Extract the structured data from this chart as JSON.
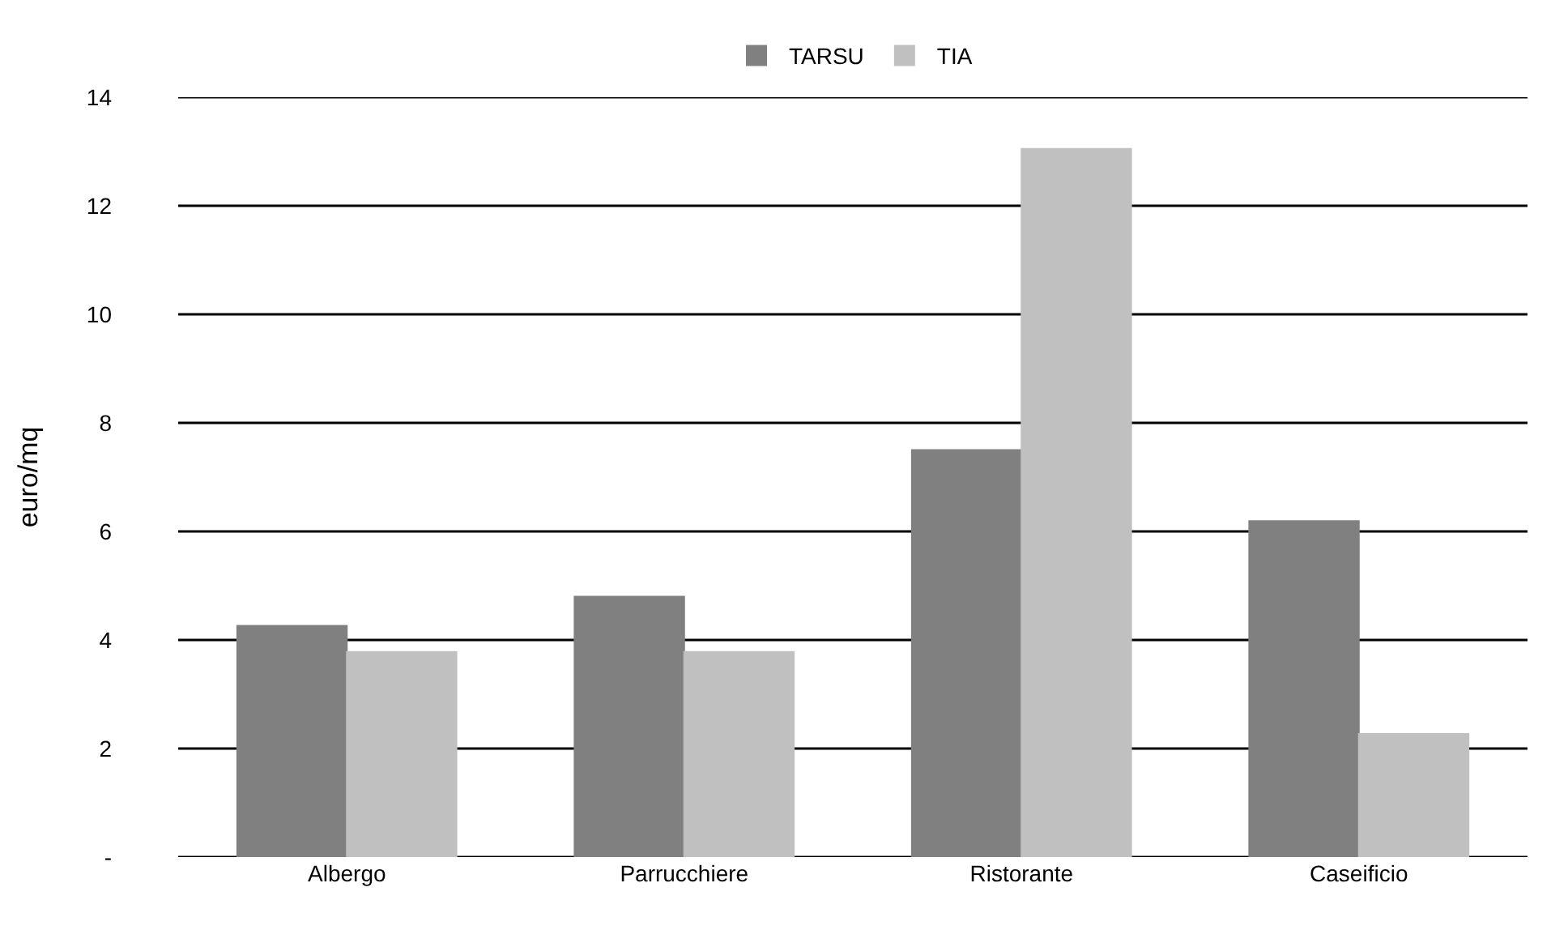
{
  "chart_data": {
    "type": "bar",
    "ylabel": "euro/mq",
    "categories": [
      "Albergo",
      "Parrucchiere",
      "Ristorante",
      "Caseificio"
    ],
    "series": [
      {
        "name": "TARSU",
        "color": "#808080",
        "values": [
          4.26,
          4.8,
          7.5,
          6.19
        ]
      },
      {
        "name": "TIA",
        "color": "#c0c0c0",
        "values": [
          3.78,
          3.78,
          13.05,
          2.27
        ]
      }
    ],
    "ylim": [
      0,
      14
    ],
    "yticks": [
      {
        "value": 0,
        "label": "-"
      },
      2,
      4,
      6,
      8,
      10,
      12,
      14
    ],
    "grid": "y",
    "legend": "top"
  }
}
